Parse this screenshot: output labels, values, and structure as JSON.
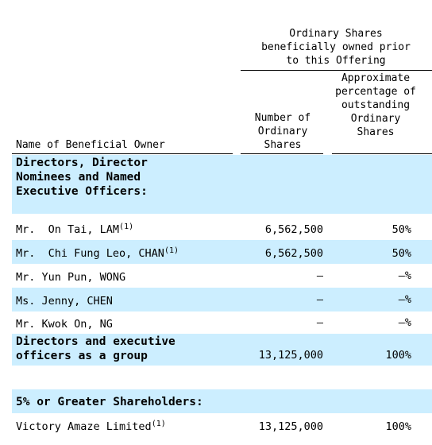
{
  "header": {
    "group_title": "Ordinary Shares beneficially owned prior to this Offering",
    "col_owner": "Name of Beneficial Owner",
    "col_number": "Number of Ordinary Shares",
    "col_percent": "Approximate percentage of outstanding Ordinary Shares"
  },
  "sections": {
    "directors_title": "Directors, Director Nominees and Named Executive Officers:",
    "group_total_label": "Directors and executive officers as a group",
    "group_total_number": "13,125,000",
    "group_total_percent": "100%",
    "shareholders_title": "5% or Greater Shareholders:"
  },
  "rows": [
    {
      "name": "Mr.  On Tai, LAM",
      "note": "(1)",
      "number": "6,562,500",
      "percent": "50%"
    },
    {
      "name": "Mr.  Chi Fung Leo, CHAN",
      "note": "(1)",
      "number": "6,562,500",
      "percent": "50%"
    },
    {
      "name": "Mr. Yun Pun, WONG",
      "note": "",
      "number": "—",
      "percent": "—%"
    },
    {
      "name": "Ms. Jenny, CHEN",
      "note": "",
      "number": "—",
      "percent": "—%"
    },
    {
      "name": "Mr. Kwok On, NG",
      "note": "",
      "number": "—",
      "percent": "—%"
    }
  ],
  "shareholders": [
    {
      "name": "Victory Amaze Limited",
      "note": "(1)",
      "number": "13,125,000",
      "percent": "100%"
    }
  ],
  "colors": {
    "band": "#cceeff"
  }
}
